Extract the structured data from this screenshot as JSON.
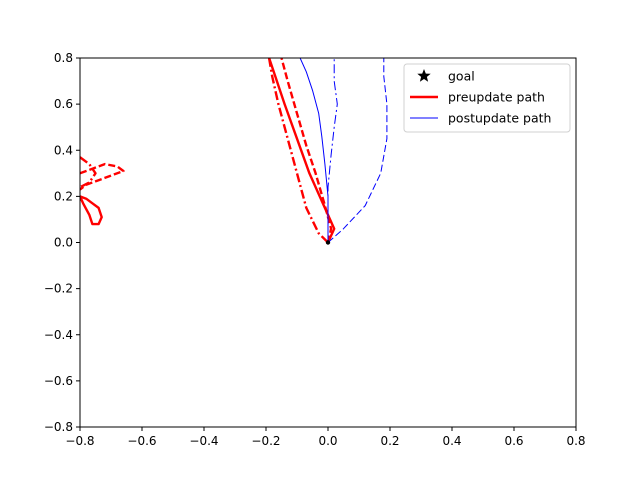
{
  "chart_data": {
    "type": "line",
    "title": "",
    "xlabel": "",
    "ylabel": "",
    "xlim": [
      -0.8,
      0.8
    ],
    "ylim": [
      -0.8,
      0.8
    ],
    "xticks": [
      "−0.8",
      "−0.6",
      "−0.4",
      "−0.2",
      "0.0",
      "0.2",
      "0.4",
      "0.6",
      "0.8"
    ],
    "yticks": [
      "−0.8",
      "−0.6",
      "−0.4",
      "−0.2",
      "0.0",
      "0.2",
      "0.4",
      "0.6",
      "0.8"
    ],
    "grid": false,
    "legend": {
      "location": "upper right",
      "entries": [
        {
          "label": "goal",
          "marker": "star",
          "color": "#000000"
        },
        {
          "label": "preupdate path",
          "color": "#ff0000",
          "linestyle": "solid",
          "linewidth": "thick"
        },
        {
          "label": "postupdate path",
          "color": "#0000ff",
          "linestyle": "solid",
          "linewidth": "thin"
        }
      ]
    },
    "goal": {
      "x": 0.0,
      "y": 0.0,
      "color": "#000000"
    },
    "series": [
      {
        "group": "preupdate",
        "color": "#ff0000",
        "style": "solid",
        "points": [
          [
            0.0,
            0.0
          ],
          [
            0.02,
            0.06
          ],
          [
            -0.02,
            0.18
          ],
          [
            -0.06,
            0.3
          ],
          [
            -0.1,
            0.45
          ],
          [
            -0.14,
            0.6
          ],
          [
            -0.17,
            0.72
          ],
          [
            -0.19,
            0.8
          ]
        ]
      },
      {
        "group": "preupdate",
        "color": "#ff0000",
        "style": "dashed",
        "points": [
          [
            0.0,
            0.0
          ],
          [
            0.01,
            0.06
          ],
          [
            -0.01,
            0.16
          ],
          [
            -0.04,
            0.3
          ],
          [
            -0.07,
            0.42
          ],
          [
            -0.1,
            0.56
          ],
          [
            -0.13,
            0.7
          ],
          [
            -0.15,
            0.8
          ]
        ]
      },
      {
        "group": "preupdate",
        "color": "#ff0000",
        "style": "dashdot",
        "points": [
          [
            0.0,
            0.0
          ],
          [
            -0.03,
            0.04
          ],
          [
            -0.07,
            0.15
          ],
          [
            -0.1,
            0.3
          ],
          [
            -0.13,
            0.45
          ],
          [
            -0.16,
            0.6
          ],
          [
            -0.18,
            0.72
          ],
          [
            -0.19,
            0.8
          ]
        ]
      },
      {
        "group": "preupdate",
        "color": "#ff0000",
        "style": "solid",
        "points": [
          [
            -0.8,
            0.2
          ],
          [
            -0.78,
            0.19
          ],
          [
            -0.76,
            0.17
          ],
          [
            -0.74,
            0.15
          ],
          [
            -0.73,
            0.11
          ],
          [
            -0.74,
            0.08
          ],
          [
            -0.76,
            0.08
          ],
          [
            -0.77,
            0.12
          ],
          [
            -0.79,
            0.17
          ],
          [
            -0.8,
            0.2
          ]
        ]
      },
      {
        "group": "preupdate",
        "color": "#ff0000",
        "style": "dashed",
        "points": [
          [
            -0.8,
            0.3
          ],
          [
            -0.76,
            0.32
          ],
          [
            -0.72,
            0.34
          ],
          [
            -0.68,
            0.33
          ],
          [
            -0.66,
            0.31
          ],
          [
            -0.7,
            0.29
          ],
          [
            -0.74,
            0.27
          ],
          [
            -0.78,
            0.25
          ],
          [
            -0.8,
            0.23
          ]
        ]
      },
      {
        "group": "preupdate",
        "color": "#ff0000",
        "style": "dashdot",
        "points": [
          [
            -0.8,
            0.37
          ],
          [
            -0.77,
            0.34
          ],
          [
            -0.75,
            0.3
          ],
          [
            -0.77,
            0.26
          ],
          [
            -0.8,
            0.24
          ]
        ]
      },
      {
        "group": "postupdate",
        "color": "#0000ff",
        "style": "solid",
        "points": [
          [
            0.0,
            0.0
          ],
          [
            0.0,
            0.1
          ],
          [
            0.0,
            0.2
          ],
          [
            -0.01,
            0.34
          ],
          [
            -0.02,
            0.46
          ],
          [
            -0.03,
            0.56
          ],
          [
            -0.05,
            0.66
          ],
          [
            -0.07,
            0.74
          ],
          [
            -0.09,
            0.8
          ]
        ]
      },
      {
        "group": "postupdate",
        "color": "#0000ff",
        "style": "dashed",
        "points": [
          [
            0.0,
            0.0
          ],
          [
            0.05,
            0.06
          ],
          [
            0.12,
            0.16
          ],
          [
            0.17,
            0.3
          ],
          [
            0.19,
            0.45
          ],
          [
            0.19,
            0.6
          ],
          [
            0.18,
            0.72
          ],
          [
            0.18,
            0.8
          ]
        ]
      },
      {
        "group": "postupdate",
        "color": "#0000ff",
        "style": "dashdot",
        "points": [
          [
            0.0,
            0.0
          ],
          [
            0.0,
            0.1
          ],
          [
            0.0,
            0.24
          ],
          [
            0.01,
            0.38
          ],
          [
            0.02,
            0.5
          ],
          [
            0.03,
            0.6
          ],
          [
            0.02,
            0.7
          ],
          [
            0.02,
            0.8
          ]
        ]
      }
    ]
  }
}
